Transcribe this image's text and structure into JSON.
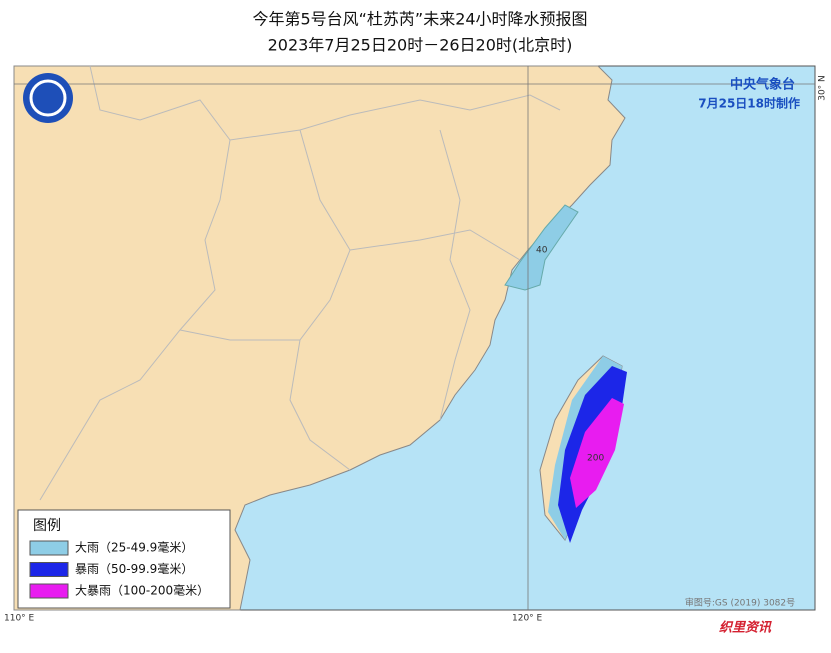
{
  "header": {
    "title": "今年第5号台风“杜苏芮”未来24小时降水预报图",
    "subtitle": "2023年7月25日20时－26日20时(北京时)"
  },
  "issuer": {
    "name": "中央气象台",
    "time": "7月25日18时制作"
  },
  "legend": {
    "title": "图例",
    "items": [
      {
        "label": "大雨（25-49.9毫米）",
        "color": "#8ecde6"
      },
      {
        "label": "暴雨（50-99.9毫米）",
        "color": "#1c26e8"
      },
      {
        "label": "大暴雨（100-200毫米）",
        "color": "#e81cf0"
      }
    ]
  },
  "contour_labels": [
    "40",
    "200"
  ],
  "axis_labels": {
    "lon_110": "110° E",
    "lon_120": "120° E",
    "lat_30": "30° N"
  },
  "approval": "审图号:GS (2019) 3082号",
  "watermark": "织里资讯"
}
